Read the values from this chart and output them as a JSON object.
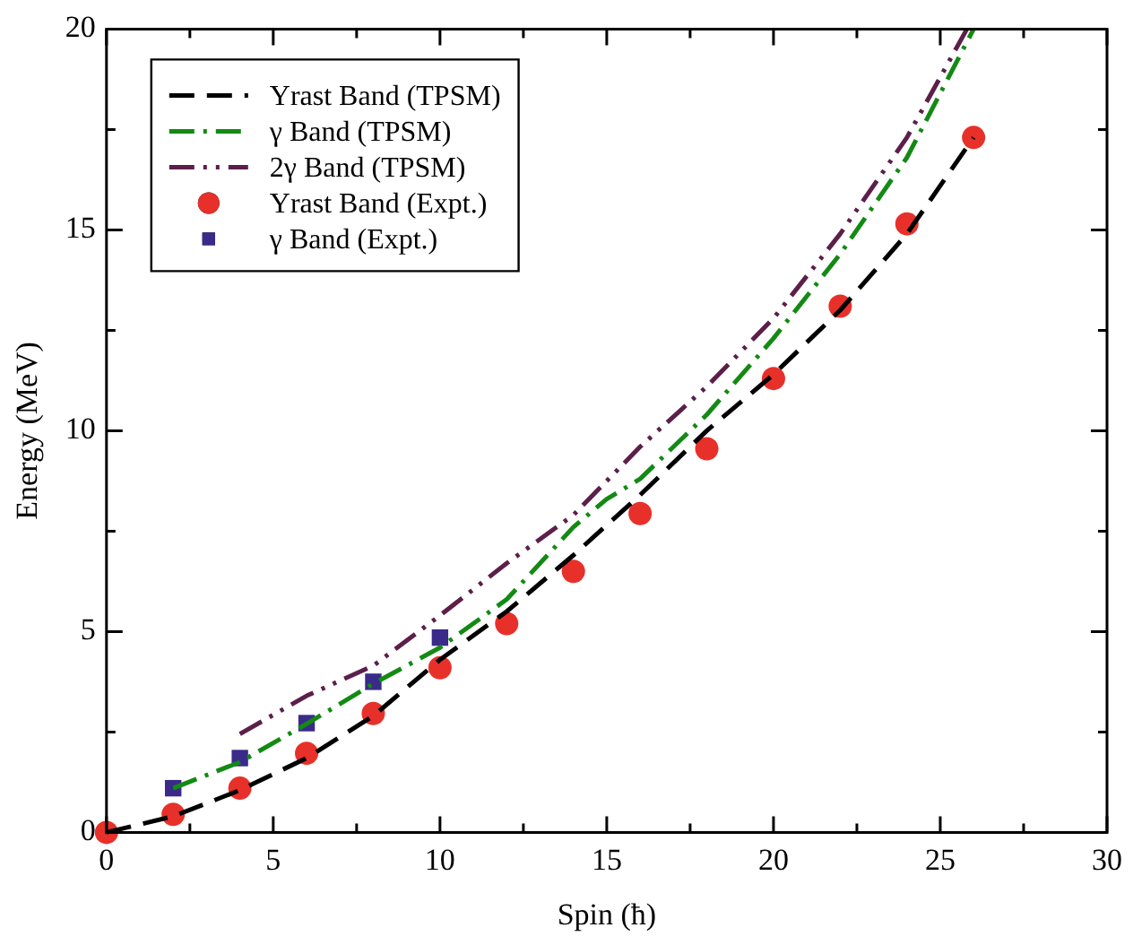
{
  "chart_data": {
    "type": "line",
    "xlabel": "Spin (ħ)",
    "ylabel": "Energy (MeV)",
    "xlim": [
      0,
      30
    ],
    "ylim": [
      0,
      20
    ],
    "xticks": [
      0,
      {
        "value": 2.5,
        "label": null
      },
      5,
      {
        "value": 7.5,
        "label": null
      },
      10,
      {
        "value": 12.5,
        "label": null
      },
      15,
      {
        "value": 17.5,
        "label": null
      },
      20,
      {
        "value": 22.5,
        "label": null
      },
      25,
      {
        "value": 27.5,
        "label": null
      },
      30
    ],
    "yticks": [
      0,
      {
        "value": 2.5,
        "label": null
      },
      5,
      {
        "value": 7.5,
        "label": null
      },
      10,
      {
        "value": 12.5,
        "label": null
      },
      15,
      {
        "value": 17.5,
        "label": null
      },
      20
    ],
    "grid": false,
    "legend": "top left",
    "series": [
      {
        "name": "Yrast Band (TPSM)",
        "type": "line",
        "color": "#000000",
        "line_style": "dashed",
        "marker": "none",
        "x": [
          0,
          2,
          4,
          6,
          8,
          10,
          12,
          14,
          16,
          18,
          20,
          22,
          24,
          26
        ],
        "values": [
          0,
          0.4,
          1.05,
          1.85,
          2.9,
          4.3,
          5.5,
          6.9,
          8.4,
          10.0,
          11.4,
          13.0,
          14.9,
          17.3
        ]
      },
      {
        "name": "γ Band (TPSM)",
        "type": "line",
        "color": "#138a13",
        "line_style": "dashdot",
        "marker": "none",
        "x": [
          2,
          4,
          6,
          8,
          10,
          12,
          14,
          15,
          16,
          18,
          20,
          22,
          24,
          26
        ],
        "values": [
          1.1,
          1.75,
          2.7,
          3.7,
          4.6,
          5.8,
          7.6,
          8.3,
          8.8,
          10.4,
          12.3,
          14.4,
          16.8,
          20
        ]
      },
      {
        "name": "2γ Band (TPSM)",
        "type": "line",
        "color": "#5c1f4a",
        "line_style": "dashdotdot",
        "marker": "none",
        "x": [
          4,
          6,
          8,
          10,
          12,
          14,
          16,
          18,
          20,
          22,
          24,
          25.8
        ],
        "values": [
          2.45,
          3.4,
          4.15,
          5.4,
          6.7,
          7.9,
          9.6,
          11.1,
          12.8,
          14.9,
          17.3,
          20
        ]
      },
      {
        "name": "Yrast Band (Expt.)",
        "type": "scatter",
        "color": "#e8302a",
        "marker": "circle",
        "x": [
          0,
          2,
          4,
          6,
          8,
          10,
          12,
          14,
          16,
          18,
          20,
          22,
          24,
          26
        ],
        "values": [
          0,
          0.45,
          1.1,
          1.97,
          2.96,
          4.1,
          5.2,
          6.5,
          7.94,
          9.55,
          11.3,
          13.1,
          15.15,
          17.3
        ]
      },
      {
        "name": "γ Band (Expt.)",
        "type": "scatter",
        "color": "#3a2a8a",
        "marker": "square",
        "x": [
          2,
          4,
          6,
          8,
          10
        ],
        "values": [
          1.1,
          1.85,
          2.72,
          3.75,
          4.85
        ]
      }
    ]
  }
}
